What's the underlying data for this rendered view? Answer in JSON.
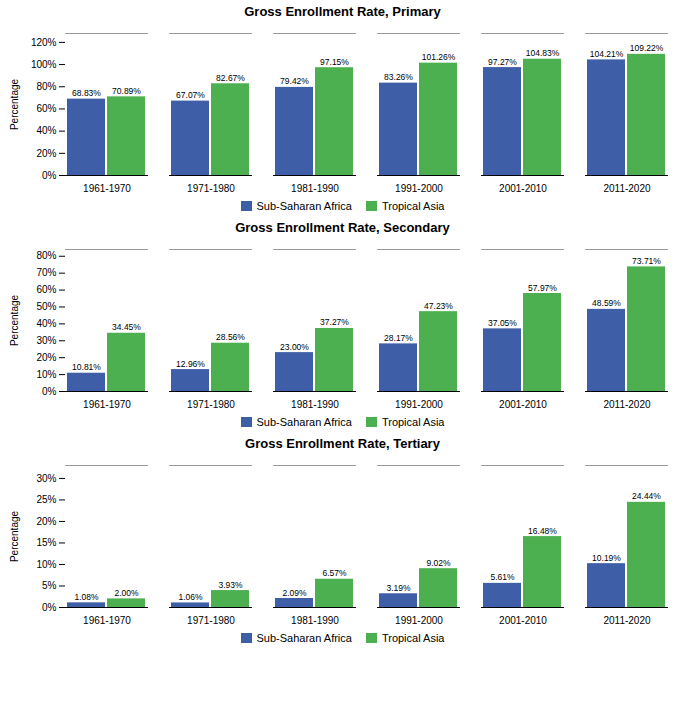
{
  "chart_data": [
    {
      "type": "bar",
      "title": "Gross Enrollment Rate, Primary",
      "categories": [
        "1961-1970",
        "1971-1980",
        "1981-1990",
        "1991-2000",
        "2001-2010",
        "2011-2020"
      ],
      "series": [
        {
          "name": "Sub-Saharan Africa",
          "color": "#3F5EA8",
          "values": [
            68.83,
            67.07,
            79.42,
            83.26,
            97.27,
            104.21
          ],
          "value_labels": [
            "68.83%",
            "67.07%",
            "79.42%",
            "83.26%",
            "97.27%",
            "104.21%"
          ]
        },
        {
          "name": "Tropical Asia",
          "color": "#4CAF50",
          "values": [
            70.89,
            82.67,
            97.15,
            101.26,
            104.83,
            109.22
          ],
          "value_labels": [
            "70.89%",
            "82.67%",
            "97.15%",
            "101.26%",
            "104.83%",
            "109.22%"
          ]
        }
      ],
      "ylabel": "Percentage",
      "ylim": [
        0,
        128
      ],
      "yticks": [
        {
          "value": 0,
          "label": "0%"
        },
        {
          "value": 20,
          "label": "20%"
        },
        {
          "value": 40,
          "label": "40%"
        },
        {
          "value": 60,
          "label": "60%"
        },
        {
          "value": 80,
          "label": "80%"
        },
        {
          "value": 100,
          "label": "100%"
        },
        {
          "value": 120,
          "label": "120%"
        }
      ],
      "grid": false,
      "legend": "bottom",
      "data_labels": true
    },
    {
      "type": "bar",
      "title": "Gross Enrollment Rate, Secondary",
      "categories": [
        "1961-1970",
        "1971-1980",
        "1981-1990",
        "1991-2000",
        "2001-2010",
        "2011-2020"
      ],
      "series": [
        {
          "name": "Sub-Saharan Africa",
          "color": "#3F5EA8",
          "values": [
            10.81,
            12.96,
            23.0,
            28.17,
            37.05,
            48.59
          ],
          "value_labels": [
            "10.81%",
            "12.96%",
            "23.00%",
            "28.17%",
            "37.05%",
            "48.59%"
          ]
        },
        {
          "name": "Tropical Asia",
          "color": "#4CAF50",
          "values": [
            34.45,
            28.56,
            37.27,
            47.23,
            57.97,
            73.71
          ],
          "value_labels": [
            "34.45%",
            "28.56%",
            "37.27%",
            "47.23%",
            "57.97%",
            "73.71%"
          ]
        }
      ],
      "ylabel": "Percentage",
      "ylim": [
        0,
        84
      ],
      "yticks": [
        {
          "value": 0,
          "label": "0%"
        },
        {
          "value": 10,
          "label": "10%"
        },
        {
          "value": 20,
          "label": "20%"
        },
        {
          "value": 30,
          "label": "30%"
        },
        {
          "value": 40,
          "label": "40%"
        },
        {
          "value": 50,
          "label": "50%"
        },
        {
          "value": 60,
          "label": "60%"
        },
        {
          "value": 70,
          "label": "70%"
        },
        {
          "value": 80,
          "label": "80%"
        }
      ],
      "grid": false,
      "legend": "bottom",
      "data_labels": true
    },
    {
      "type": "bar",
      "title": "Gross Enrollment Rate, Tertiary",
      "categories": [
        "1961-1970",
        "1971-1980",
        "1981-1990",
        "1991-2000",
        "2001-2010",
        "2011-2020"
      ],
      "series": [
        {
          "name": "Sub-Saharan Africa",
          "color": "#3F5EA8",
          "values": [
            1.08,
            1.06,
            2.09,
            3.19,
            5.61,
            10.19
          ],
          "value_labels": [
            "1.08%",
            "1.06%",
            "2.09%",
            "3.19%",
            "5.61%",
            "10.19%"
          ]
        },
        {
          "name": "Tropical Asia",
          "color": "#4CAF50",
          "values": [
            2.0,
            3.93,
            6.57,
            9.02,
            16.48,
            24.44
          ],
          "value_labels": [
            "2.00%",
            "3.93%",
            "6.57%",
            "9.02%",
            "16.48%",
            "24.44%"
          ]
        }
      ],
      "ylabel": "Percentage",
      "ylim": [
        0,
        33
      ],
      "yticks": [
        {
          "value": 0,
          "label": "0%"
        },
        {
          "value": 5,
          "label": "5%"
        },
        {
          "value": 10,
          "label": "10%"
        },
        {
          "value": 15,
          "label": "15%"
        },
        {
          "value": 20,
          "label": "20%"
        },
        {
          "value": 25,
          "label": "25%"
        },
        {
          "value": 30,
          "label": "30%"
        }
      ],
      "grid": false,
      "legend": "bottom",
      "data_labels": true
    }
  ]
}
